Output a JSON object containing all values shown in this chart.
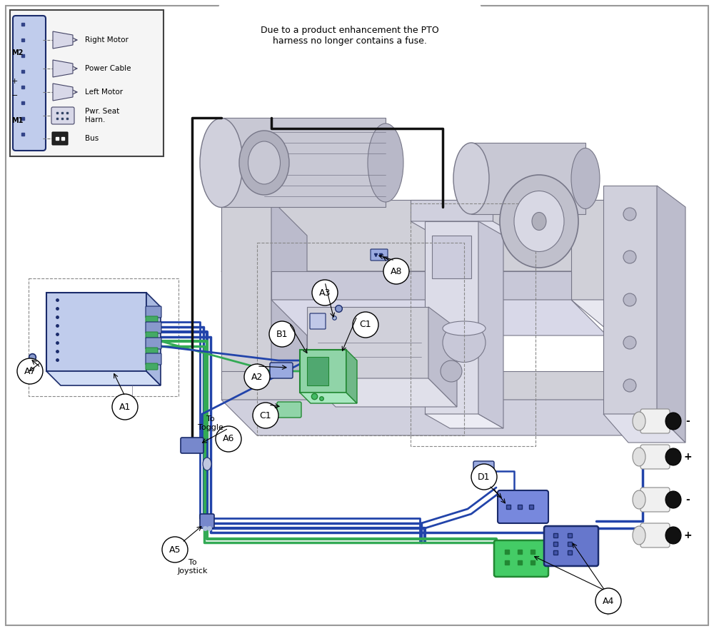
{
  "bg_color": "#ffffff",
  "border_color": "#cccccc",
  "BLUE": "#2244aa",
  "BLUE_DARK": "#1a2b6b",
  "GREEN": "#33aa55",
  "GREEN_DARK": "#1a7a3a",
  "BLACK": "#111111",
  "GRAY1": "#bbbbcc",
  "GRAY2": "#d0d0d8",
  "GRAY3": "#e8e8f0",
  "GRAY4": "#888899",
  "DGRAY": "#777788",
  "note_text": "Due to a product enhancement the PTO\nharness no longer contains a fuse.",
  "inset_labels": [
    "Bus",
    "Pwr. Seat\nHarn.",
    "Left Motor",
    "Power Cable",
    "Right Motor"
  ],
  "inset_side": [
    "M1",
    "-",
    "+",
    "M2"
  ]
}
